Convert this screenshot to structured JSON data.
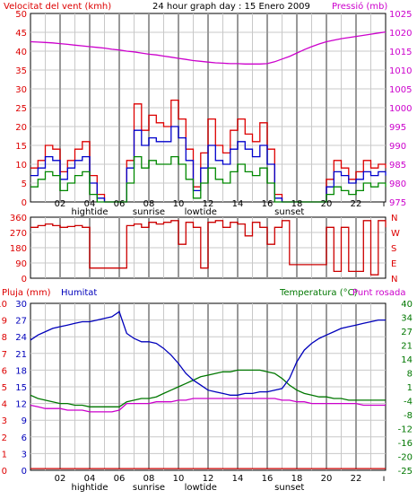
{
  "header": {
    "left_label": "Velocitat del vent (kmh)",
    "title": "24 hour graph day : 15 Enero 2009",
    "right_label": "Pressió (mb)"
  },
  "colors": {
    "wind": "#dd0000",
    "wind_avg": "#0000cc",
    "wind_min": "#008800",
    "pressure": "#cc00cc",
    "direction": "#cc0000",
    "humidity": "#0000bb",
    "temperature": "#007700",
    "dewpoint": "#cc00cc",
    "rain": "#cc0000",
    "grid": "#c8c8c8",
    "highlight": "#999999"
  },
  "x_axis": {
    "ticks": [
      "02",
      "04",
      "06",
      "08",
      "10",
      "12",
      "14",
      "16",
      "18",
      "20",
      "22"
    ],
    "end_tick": "ı",
    "events": [
      {
        "label": "hightide",
        "hour": 4
      },
      {
        "label": "sunrise",
        "hour": 8
      },
      {
        "label": "lowtide",
        "hour": 11.5
      },
      {
        "label": "sunset",
        "hour": 17.5
      }
    ]
  },
  "chart_data": [
    {
      "type": "line",
      "id": "wind-pressure",
      "ylabel": "Velocitat del vent (kmh)",
      "y2label": "Pressió (mb)",
      "ylim": [
        0,
        50
      ],
      "yticks": [
        0,
        5,
        10,
        15,
        20,
        25,
        30,
        35,
        40,
        45,
        50
      ],
      "y2lim": [
        975,
        1025
      ],
      "y2ticks": [
        975,
        980,
        985,
        990,
        995,
        1000,
        1005,
        1010,
        1015,
        1020,
        1025
      ],
      "x": [
        0,
        0.5,
        1,
        1.5,
        2,
        2.5,
        3,
        3.5,
        4,
        4.5,
        5,
        5.5,
        6,
        6.5,
        7,
        7.5,
        8,
        8.5,
        9,
        9.5,
        10,
        10.5,
        11,
        11.5,
        12,
        12.5,
        13,
        13.5,
        14,
        14.5,
        15,
        15.5,
        16,
        16.5,
        17,
        17.5,
        18,
        18.5,
        19,
        19.5,
        20,
        20.5,
        21,
        21.5,
        22,
        22.5,
        23,
        23.5,
        24
      ],
      "series": [
        {
          "values": [
            9,
            11,
            15,
            14,
            8,
            11,
            14,
            16,
            7,
            2,
            0,
            0,
            0,
            11,
            26,
            19,
            23,
            21,
            20,
            27,
            22,
            14,
            4,
            13,
            22,
            15,
            13,
            19,
            22,
            18,
            16,
            21,
            14,
            2,
            0,
            0,
            0,
            0,
            0,
            0,
            6,
            11,
            9,
            6,
            8,
            11,
            9,
            10,
            9
          ]
        },
        {
          "values": [
            7,
            9,
            12,
            11,
            6,
            9,
            11,
            12,
            5,
            1,
            0,
            0,
            0,
            9,
            19,
            15,
            17,
            16,
            16,
            20,
            17,
            11,
            3,
            9,
            15,
            11,
            10,
            14,
            16,
            14,
            12,
            15,
            10,
            1,
            0,
            0,
            0,
            0,
            0,
            0,
            4,
            8,
            7,
            5,
            6,
            8,
            7,
            8,
            7
          ]
        },
        {
          "values": [
            4,
            6,
            8,
            7,
            3,
            5,
            7,
            8,
            2,
            0,
            0,
            0,
            0,
            5,
            12,
            9,
            11,
            10,
            10,
            12,
            10,
            6,
            1,
            5,
            9,
            6,
            5,
            8,
            10,
            8,
            7,
            9,
            5,
            0,
            0,
            0,
            0,
            0,
            0,
            0,
            2,
            4,
            3,
            2,
            3,
            5,
            4,
            5,
            4
          ]
        },
        {
          "values": [
            1017.5,
            1017.4,
            1017.3,
            1017.2,
            1017.0,
            1016.8,
            1016.6,
            1016.4,
            1016.2,
            1016.0,
            1015.8,
            1015.5,
            1015.3,
            1015.0,
            1014.8,
            1014.5,
            1014.2,
            1014.0,
            1013.7,
            1013.4,
            1013.1,
            1012.8,
            1012.5,
            1012.3,
            1012.1,
            1011.9,
            1011.8,
            1011.7,
            1011.7,
            1011.6,
            1011.6,
            1011.6,
            1011.7,
            1012.2,
            1012.9,
            1013.6,
            1014.5,
            1015.4,
            1016.2,
            1016.9,
            1017.5,
            1017.9,
            1018.3,
            1018.6,
            1018.9,
            1019.2,
            1019.5,
            1019.8,
            1020.1
          ]
        }
      ]
    },
    {
      "type": "line",
      "id": "wind-direction",
      "yticks": [
        0,
        90,
        180,
        270,
        360
      ],
      "ylim": [
        0,
        360
      ],
      "y2ticks": [
        "N",
        "E",
        "S",
        "W",
        "N"
      ],
      "x": [
        0,
        0.5,
        1,
        1.5,
        2,
        2.5,
        3,
        3.5,
        4,
        4.5,
        5,
        5.5,
        6,
        6.5,
        7,
        7.5,
        8,
        8.5,
        9,
        9.5,
        10,
        10.5,
        11,
        11.5,
        12,
        12.5,
        13,
        13.5,
        14,
        14.5,
        15,
        15.5,
        16,
        16.5,
        17,
        17.5,
        18,
        18.5,
        19,
        19.5,
        20,
        20.5,
        21,
        21.5,
        22,
        22.5,
        23,
        23.5,
        24
      ],
      "series": [
        {
          "values": [
            300,
            310,
            320,
            310,
            300,
            305,
            310,
            300,
            60,
            60,
            60,
            60,
            60,
            310,
            320,
            300,
            330,
            320,
            330,
            340,
            200,
            330,
            300,
            60,
            330,
            340,
            300,
            330,
            320,
            250,
            330,
            300,
            200,
            300,
            340,
            80,
            80,
            80,
            80,
            80,
            300,
            40,
            300,
            40,
            40,
            340,
            20,
            340,
            300
          ]
        }
      ]
    },
    {
      "type": "line",
      "id": "temp-humidity",
      "ylabel": "Pluja (mm)",
      "y2label": "Humitat",
      "y3label": "Temperatura (°C)",
      "y4label": "Punt rosada",
      "ylim": [
        0,
        100
      ],
      "y_left_outer_ticks": [
        0,
        1,
        2,
        3,
        4,
        5,
        6,
        7,
        8,
        9,
        10
      ],
      "y_left_inner_ticks": [
        0,
        3,
        6,
        9,
        12,
        15,
        18,
        21,
        24,
        27,
        30
      ],
      "y_right_ticks": [
        -25,
        -20,
        -16,
        -12,
        -8,
        -4,
        1,
        8,
        14,
        21,
        27,
        34,
        40
      ],
      "x": [
        0,
        0.5,
        1,
        1.5,
        2,
        2.5,
        3,
        3.5,
        4,
        4.5,
        5,
        5.5,
        6,
        6.5,
        7,
        7.5,
        8,
        8.5,
        9,
        9.5,
        10,
        10.5,
        11,
        11.5,
        12,
        12.5,
        13,
        13.5,
        14,
        14.5,
        15,
        15.5,
        16,
        16.5,
        17,
        17.5,
        18,
        18.5,
        19,
        19.5,
        20,
        20.5,
        21,
        21.5,
        22,
        22.5,
        23,
        23.5,
        24
      ],
      "series": [
        {
          "values": [
            78,
            81,
            83,
            85,
            86,
            87,
            88,
            89,
            89,
            90,
            91,
            92,
            95,
            82,
            79,
            77,
            77,
            76,
            73,
            69,
            64,
            58,
            54,
            51,
            48,
            47,
            46,
            45,
            45,
            46,
            46,
            47,
            47,
            48,
            49,
            55,
            65,
            72,
            76,
            79,
            81,
            83,
            85,
            86,
            87,
            88,
            89,
            90,
            90
          ]
        },
        {
          "values": [
            45,
            43,
            42,
            41,
            40,
            40,
            39,
            39,
            38,
            38,
            38,
            38,
            38,
            41,
            42,
            43,
            43,
            44,
            46,
            48,
            50,
            52,
            54,
            56,
            57,
            58,
            59,
            59,
            60,
            60,
            60,
            60,
            59,
            58,
            55,
            51,
            48,
            46,
            45,
            44,
            44,
            43,
            43,
            42,
            42,
            42,
            42,
            42,
            42
          ]
        },
        {
          "values": [
            39,
            38,
            37,
            37,
            37,
            36,
            36,
            36,
            35,
            35,
            35,
            35,
            36,
            40,
            40,
            40,
            40,
            41,
            41,
            41,
            42,
            42,
            43,
            43,
            43,
            43,
            43,
            43,
            43,
            43,
            43,
            43,
            43,
            43,
            42,
            42,
            41,
            41,
            40,
            40,
            40,
            40,
            40,
            40,
            40,
            39,
            39,
            39,
            39
          ]
        },
        {
          "values": [
            1,
            1,
            1,
            1,
            1,
            1,
            1,
            1,
            1,
            1,
            1,
            1,
            1,
            1,
            1,
            1,
            1,
            1,
            1,
            1,
            1,
            1,
            1,
            1,
            1,
            1,
            1,
            1,
            1,
            1,
            1,
            1,
            1,
            1,
            1,
            1,
            1,
            1,
            1,
            1,
            1,
            1,
            1,
            1,
            1,
            1,
            1,
            1,
            1
          ]
        }
      ]
    }
  ],
  "bottom_header": {
    "rain_label": "Pluja (mm)",
    "humidity_label": "Humitat",
    "temp_label": "Temperatura (°C)",
    "dew_label": "Punt rosada"
  }
}
